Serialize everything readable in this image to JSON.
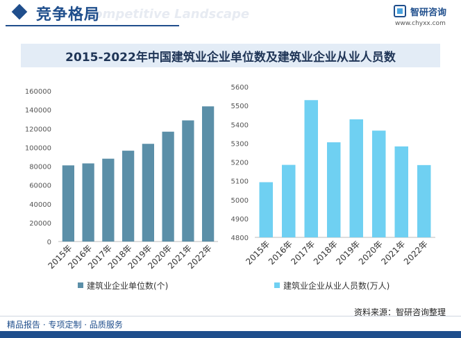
{
  "header": {
    "section_title": "竞争格局",
    "section_subtitle": "Competitive Landscape",
    "logo_name": "智研咨询",
    "logo_url": "www.chyxx.com"
  },
  "footer": {
    "source": "资料来源：智研咨询整理",
    "services": "精品报告 · 专项定制 · 品质服务"
  },
  "chart_data": [
    {
      "type": "bar",
      "title": "2015-2022年中国建筑业企业单位数及建筑业企业从业人员数",
      "categories": [
        "2015年",
        "2016年",
        "2017年",
        "2018年",
        "2019年",
        "2020年",
        "2021年",
        "2022年"
      ],
      "series": [
        {
          "name": "建筑业企业单位数(个)",
          "values": [
            80900,
            83000,
            88000,
            96500,
            103800,
            116700,
            128700,
            143600
          ]
        }
      ],
      "ylim": [
        0,
        160000
      ],
      "yticks": [
        0,
        20000,
        40000,
        60000,
        80000,
        100000,
        120000,
        140000,
        160000
      ],
      "color": "#5b8fa8",
      "legend": "bottom"
    },
    {
      "type": "bar",
      "categories": [
        "2015年",
        "2016年",
        "2017年",
        "2018年",
        "2019年",
        "2020年",
        "2021年",
        "2022年"
      ],
      "series": [
        {
          "name": "建筑业企业从业人员数(万人)",
          "values": [
            5093,
            5185,
            5529,
            5305,
            5427,
            5367,
            5283,
            5184
          ]
        }
      ],
      "ylim": [
        4800,
        5600
      ],
      "yticks": [
        4800,
        4900,
        5000,
        5100,
        5200,
        5300,
        5400,
        5500,
        5600
      ],
      "color": "#6fd0f2",
      "legend": "bottom"
    }
  ]
}
